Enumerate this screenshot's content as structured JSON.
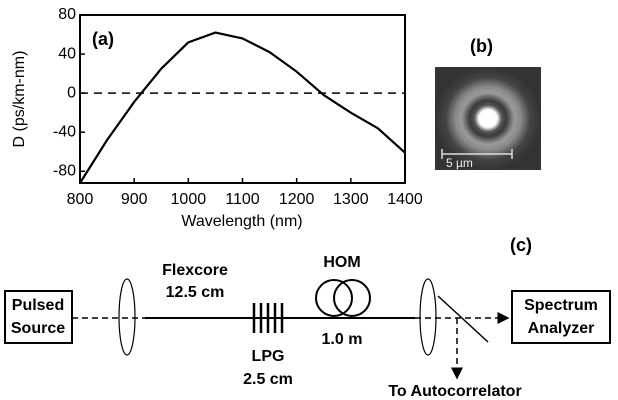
{
  "chart_data": {
    "type": "line",
    "panel_label": "(a)",
    "ylabel": "D (ps/km-nm)",
    "xlabel": "Wavelength (nm)",
    "x": [
      800,
      850,
      900,
      950,
      1000,
      1050,
      1100,
      1150,
      1200,
      1250,
      1300,
      1350,
      1400
    ],
    "values": [
      -92,
      -48,
      -9,
      25,
      52,
      62,
      56,
      42,
      22,
      -2,
      -20,
      -36,
      -61
    ],
    "color": "#000000",
    "reference_line": 0,
    "xlim": [
      800,
      1400
    ],
    "xticks": [
      800,
      900,
      1000,
      1100,
      1200,
      1300,
      1400
    ],
    "ylim": [
      -92,
      80
    ],
    "yticks": [
      -80,
      -40,
      0,
      40,
      80
    ]
  },
  "panel_b": {
    "label": "(b)",
    "scale_bar": "5 µm"
  },
  "panel_c": {
    "label": "(c)",
    "source": [
      "Pulsed",
      "Source"
    ],
    "fiber": [
      "Flexcore",
      "12.5 cm"
    ],
    "lpg": [
      "LPG",
      "2.5 cm"
    ],
    "hom": [
      "HOM",
      "1.0 m"
    ],
    "analyzer": [
      "Spectrum",
      "Analyzer"
    ],
    "autocorrelator": "To Autocorrelator"
  }
}
